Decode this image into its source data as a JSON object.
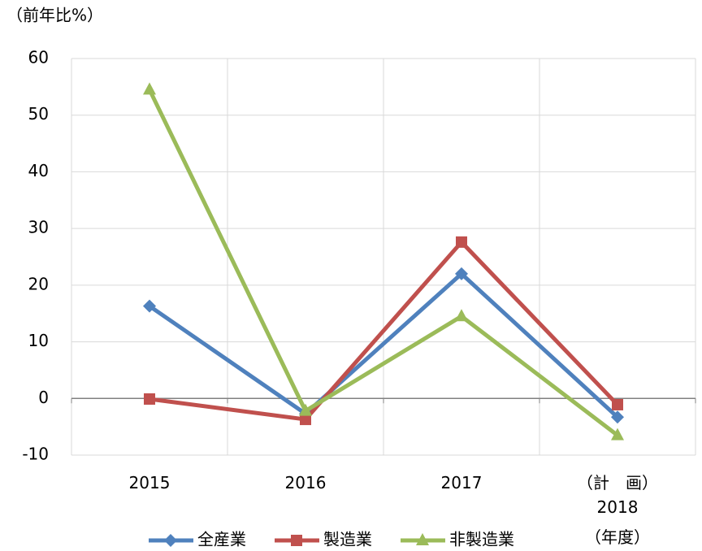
{
  "chart_data": {
    "type": "line",
    "y_label": "（前年比%）",
    "x_label": "（年度）",
    "categories": [
      "2015",
      "2016",
      "2017",
      "（計　画）\n2018"
    ],
    "series": [
      {
        "name": "全産業",
        "color": "#4f81bd",
        "marker": "diamond",
        "values": [
          16.3,
          -2.7,
          22.0,
          -3.3
        ]
      },
      {
        "name": "製造業",
        "color": "#c0504d",
        "marker": "square",
        "values": [
          -0.1,
          -3.7,
          27.6,
          -1.1
        ]
      },
      {
        "name": "非製造業",
        "color": "#9bbb59",
        "marker": "triangle",
        "values": [
          54.5,
          -2.2,
          14.5,
          -6.5
        ]
      }
    ],
    "ylim": [
      -10,
      60
    ],
    "yticks": [
      -10,
      0,
      10,
      20,
      30,
      40,
      50,
      60
    ],
    "grid": true,
    "legend": "bottom"
  }
}
